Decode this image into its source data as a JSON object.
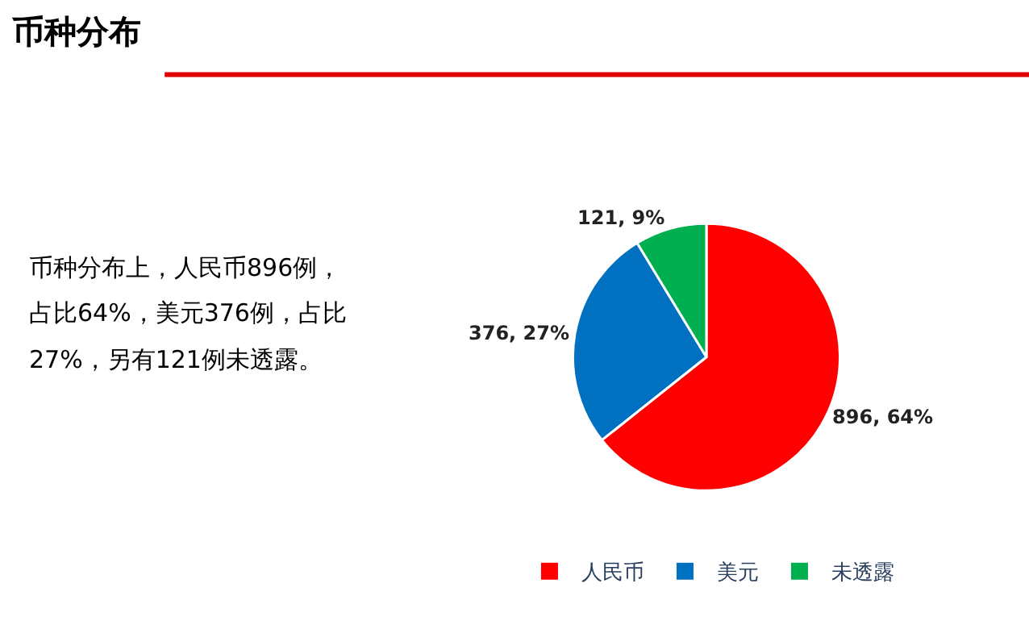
{
  "chart_data": {
    "type": "pie",
    "title": "币种分布",
    "categories": [
      "人民币",
      "美元",
      "未透露"
    ],
    "values": [
      896,
      376,
      121
    ],
    "colors": [
      "#ff0000",
      "#0070c0",
      "#00b050"
    ],
    "value_labels": [
      "896, 64%",
      "376, 27%",
      "121, 9%"
    ],
    "legend": "bottom",
    "annotations": [
      "币种分布上，人民币896例，",
      "占比64%，美元376例，占比",
      "27%，另有121例未透露。"
    ]
  }
}
